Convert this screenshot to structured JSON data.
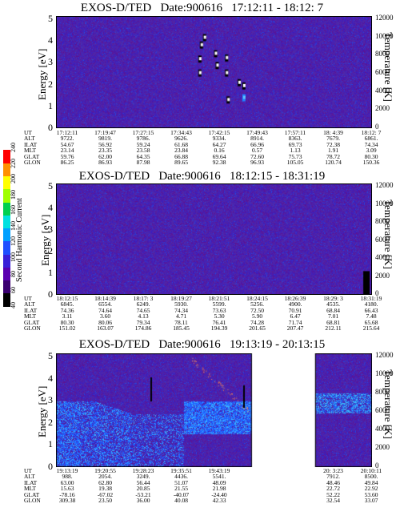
{
  "colorbar": {
    "label": "Second Harmonic Current",
    "ticks": [
      "40",
      "60",
      "80",
      "100",
      "120",
      "140",
      "160",
      "180",
      "200",
      "220",
      "240"
    ],
    "colors": [
      "#000000",
      "#3a0070",
      "#5a00b0",
      "#3a20d8",
      "#2050ff",
      "#00a0ff",
      "#00e0e0",
      "#00d050",
      "#a0ff00",
      "#ffff00",
      "#ff9000",
      "#ff0000"
    ]
  },
  "chart_data": [
    {
      "type": "heatmap",
      "title": "EXOS-D/TED   Date:900616   17:12:11 - 18:12: 7",
      "ylabel": "Energy [eV]",
      "y2label": "Temperature [K]",
      "ylim": [
        0,
        5
      ],
      "y2lim": [
        0,
        12000
      ],
      "yticks": [
        "0",
        "1",
        "2",
        "3",
        "4",
        "5"
      ],
      "y2ticks": [
        "0",
        "2000",
        "4000",
        "6000",
        "8000",
        "10000",
        "12000"
      ],
      "features": [
        {
          "t": 0.46,
          "e": 3.85,
          "c": "w"
        },
        {
          "t": 0.47,
          "e": 4.2,
          "c": "w"
        },
        {
          "t": 0.455,
          "e": 3.2,
          "c": "w"
        },
        {
          "t": 0.455,
          "e": 2.55,
          "c": "w"
        },
        {
          "t": 0.505,
          "e": 3.45,
          "c": "w"
        },
        {
          "t": 0.54,
          "e": 3.25,
          "c": "w"
        },
        {
          "t": 0.51,
          "e": 2.9,
          "c": "w"
        },
        {
          "t": 0.54,
          "e": 2.55,
          "c": "w"
        },
        {
          "t": 0.58,
          "e": 2.1,
          "c": "w"
        },
        {
          "t": 0.595,
          "e": 1.95,
          "c": "w"
        },
        {
          "t": 0.545,
          "e": 1.3,
          "c": "w"
        },
        {
          "t": 0.595,
          "e": 1.4,
          "c": "b"
        }
      ],
      "table": {
        "rows": [
          "UT",
          "ALT",
          "ILAT",
          "MLT",
          "GLAT",
          "GLON"
        ],
        "columns": [
          [
            "17:12:11",
            "9722.",
            "54.67",
            "23.14",
            "59.76",
            "86.25"
          ],
          [
            "17:19:47",
            "9819.",
            "56.92",
            "23.35",
            "62.00",
            "86.93"
          ],
          [
            "17:27:15",
            "9786.",
            "59.24",
            "23.58",
            "64.35",
            "87.98"
          ],
          [
            "17:34:43",
            "9626.",
            "61.68",
            "23.84",
            "66.88",
            "89.65"
          ],
          [
            "17:42:15",
            "9334.",
            "64.27",
            "0.16",
            "69.64",
            "92.38"
          ],
          [
            "17:49:43",
            "8914.",
            "66.96",
            "0.57",
            "72.60",
            "96.93"
          ],
          [
            "17:57:11",
            "8363.",
            "69.73",
            "1.13",
            "75.73",
            "105.05"
          ],
          [
            "18: 4:39",
            "7679.",
            "72.38",
            "1.91",
            "78.72",
            "120.74"
          ],
          [
            "18:12: 7",
            "6861.",
            "74.34",
            "3.09",
            "80.30",
            "150.36"
          ]
        ]
      }
    },
    {
      "type": "heatmap",
      "title": "EXOS-D/TED   Date:900616   18:12:15 - 18:31:19",
      "ylabel": "Energy [eV]",
      "y2label": "Temperature [K]",
      "ylim": [
        0,
        5
      ],
      "y2lim": [
        0,
        12000
      ],
      "yticks": [
        "0",
        "1",
        "2",
        "3",
        "4",
        "5"
      ],
      "y2ticks": [
        "0",
        "2000",
        "4000",
        "6000",
        "8000",
        "10000",
        "12000"
      ],
      "features": [],
      "table": {
        "rows": [
          "UT",
          "ALT",
          "ILAT",
          "MLT",
          "GLAT",
          "GLON"
        ],
        "columns": [
          [
            "18:12:15",
            "6845.",
            "74.36",
            "3.11",
            "80.30",
            "151.02"
          ],
          [
            "18:14:39",
            "6554.",
            "74.64",
            "3.60",
            "80.06",
            "163.07"
          ],
          [
            "18:17: 3",
            "6249.",
            "74.65",
            "4.13",
            "79.34",
            "174.86"
          ],
          [
            "18:19:27",
            "5930.",
            "74.34",
            "4.71",
            "78.11",
            "185.45"
          ],
          [
            "18:21:51",
            "5599.",
            "73.63",
            "5.30",
            "76.41",
            "194.39"
          ],
          [
            "18:24:15",
            "5256.",
            "72.50",
            "5.90",
            "74.28",
            "201.65"
          ],
          [
            "18:26:39",
            "4900.",
            "70.91",
            "6.47",
            "71.74",
            "207.47"
          ],
          [
            "18:29: 3",
            "4535.",
            "68.84",
            "7.01",
            "68.81",
            "212.11"
          ],
          [
            "18:31:19",
            "4180.",
            "66.43",
            "7.48",
            "65.68",
            "215.64"
          ]
        ]
      }
    },
    {
      "type": "heatmap",
      "title": "EXOS-D/TED   Date:900616   19:13:19 - 20:13:15",
      "ylabel": "Energy [eV]",
      "y2label": "Temperature [K]",
      "ylim": [
        0,
        5
      ],
      "y2lim": [
        0,
        12000
      ],
      "yticks": [
        "0",
        "1",
        "2",
        "3",
        "4",
        "5"
      ],
      "y2ticks": [
        "0",
        "2000",
        "4000",
        "6000",
        "8000",
        "10000",
        "12000"
      ],
      "data_gap": [
        0.62,
        0.82
      ],
      "table": {
        "rows": [
          "UT",
          "ALT",
          "ILAT",
          "MLT",
          "GLAT",
          "GLON"
        ],
        "columns": [
          [
            "19:13:19",
            "988.",
            "63.00",
            "15.63",
            "-78.16",
            "309.38"
          ],
          [
            "19:20:55",
            "2054.",
            "62.80",
            "19.38",
            "-67.02",
            "23.50"
          ],
          [
            "19:28:23",
            "3249.",
            "56.44",
            "20.85",
            "-53.21",
            "36.00"
          ],
          [
            "19:35:51",
            "4436.",
            "51.07",
            "21.55",
            "-40.07",
            "40.08"
          ],
          [
            "19:43:19",
            "5541.",
            "48.09",
            "21.98",
            "-24.40",
            "42.33"
          ],
          [
            "",
            "",
            "",
            "",
            "",
            ""
          ],
          [
            "",
            "",
            "",
            "",
            "",
            ""
          ],
          [
            "20: 3:23",
            "7912.",
            "48.46",
            "22.72",
            "52.22",
            "32.54"
          ],
          [
            "20:10:11",
            "8500.",
            "49.84",
            "22.92",
            "53.60",
            "33.07"
          ]
        ]
      }
    }
  ]
}
